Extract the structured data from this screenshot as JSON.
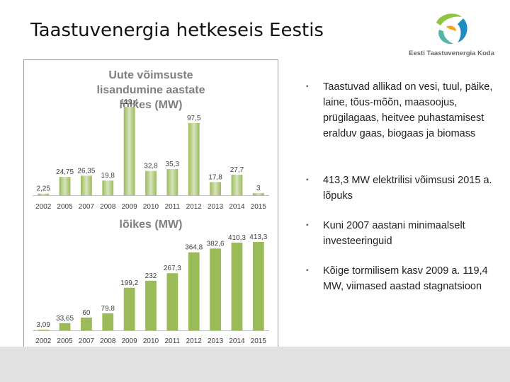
{
  "slide": {
    "title": "Taastuvenergia hetkeseis Eestis",
    "logo_text": "Eesti Taastuvenergia Koda",
    "bullets": [
      "Taastuvad allikad on vesi, tuul, päike, laine, tõus-mõõn, maasoojus, prügilagaas, heitvee puhastamisest eralduv gaas, biogaas ja biomass",
      "413,3 MW elektrilisi võimsusi 2015 a. lõpuks",
      "Kuni 2007 aastani minimaalselt investeeringuid",
      "Kõige tormilisem kasv 2009 a. 119,4 MW, viimased aastad stagnatsioon"
    ]
  },
  "colors": {
    "bar_fill": "#9bbb59",
    "bar_light": "#d7e4bd",
    "title_color": "#7f7f7f",
    "logo_green": "#8dc63f",
    "logo_blue": "#1e8bc3",
    "logo_teal": "#52b6a6",
    "logo_orange": "#f7a21b"
  },
  "chart_data": [
    {
      "type": "bar",
      "title": "Uute võimsuste lisandumine aastate lõikes (MW)",
      "categories": [
        "2002",
        "2005",
        "2007",
        "2008",
        "2009",
        "2010",
        "2011",
        "2012",
        "2013",
        "2014",
        "2015"
      ],
      "values": [
        2.25,
        24.75,
        26.35,
        19.8,
        119.4,
        32.8,
        35.3,
        97.5,
        17.8,
        27.7,
        3
      ],
      "labels": [
        "2,25",
        "24,75",
        "26,35",
        "19,8",
        "119,4",
        "32,8",
        "35,3",
        "97,5",
        "17,8",
        "27,7",
        "3"
      ],
      "ylim": [
        0,
        125
      ],
      "grid": false,
      "legend": "none"
    },
    {
      "type": "bar",
      "title": "lõikes (MW)",
      "categories": [
        "2002",
        "2005",
        "2007",
        "2008",
        "2009",
        "2010",
        "2011",
        "2012",
        "2013",
        "2014",
        "2015"
      ],
      "values": [
        3.09,
        33.65,
        60,
        79.8,
        199.2,
        232,
        267.3,
        364.8,
        382.6,
        410.3,
        413.3
      ],
      "labels": [
        "3,09",
        "33,65",
        "60",
        "79,8",
        "199,2",
        "232",
        "267,3",
        "364,8",
        "382,6",
        "410,3",
        "413,3"
      ],
      "ylim": [
        0,
        430
      ],
      "grid": false,
      "legend": "none"
    }
  ]
}
